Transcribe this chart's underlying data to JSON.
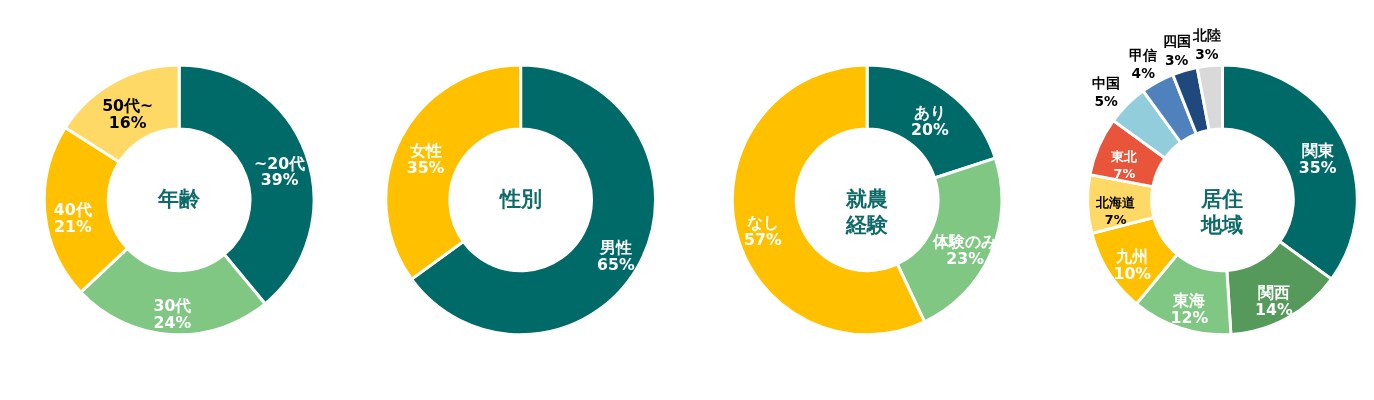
{
  "chart_data": [
    {
      "type": "donut",
      "title": "年齢",
      "categories": [
        "~20代",
        "30代",
        "40代",
        "50代~"
      ],
      "values": [
        39,
        24,
        21,
        16
      ],
      "value_labels": [
        "39%",
        "24%",
        "21%",
        "16%"
      ],
      "colors": [
        "#006a68",
        "#80c783",
        "#ffc000",
        "#ffd966"
      ]
    },
    {
      "type": "donut",
      "title": "性別",
      "categories": [
        "男性",
        "女性"
      ],
      "values": [
        65,
        35
      ],
      "value_labels": [
        "65%",
        "35%"
      ],
      "colors": [
        "#006a68",
        "#ffc000"
      ]
    },
    {
      "type": "donut",
      "title": "就農経験",
      "categories": [
        "あり",
        "体験のみ",
        "なし"
      ],
      "values": [
        20,
        23,
        57
      ],
      "value_labels": [
        "20%",
        "23%",
        "57%"
      ],
      "colors": [
        "#006a68",
        "#80c783",
        "#ffc000"
      ]
    },
    {
      "type": "donut",
      "title": "居住地域",
      "categories": [
        "関東",
        "関西",
        "東海",
        "九州",
        "北海道",
        "東北",
        "中国",
        "甲信",
        "四国",
        "北陸"
      ],
      "values": [
        35,
        14,
        12,
        10,
        7,
        7,
        5,
        4,
        3,
        3
      ],
      "value_labels": [
        "35%",
        "14%",
        "12%",
        "10%",
        "7%",
        "7%",
        "5%",
        "4%",
        "3%",
        "3%"
      ],
      "colors": [
        "#006a68",
        "#559a5a",
        "#80c783",
        "#ffc000",
        "#ffd966",
        "#e8553a",
        "#92cddc",
        "#4f81bd",
        "#1f497d",
        "#d9d9d9"
      ]
    }
  ]
}
